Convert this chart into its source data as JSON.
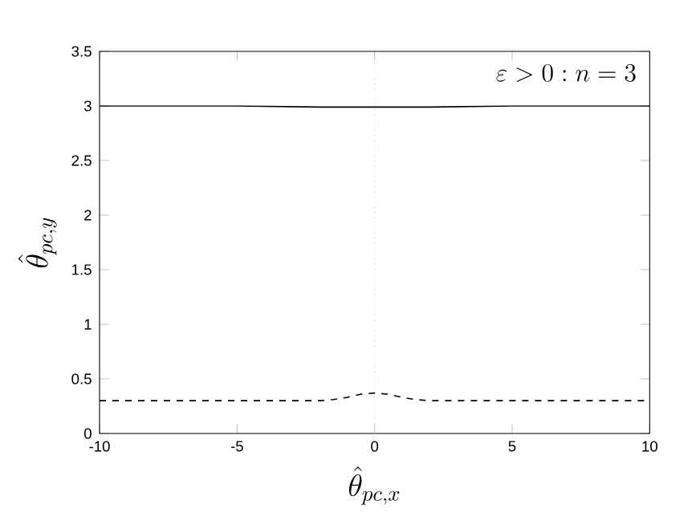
{
  "chart_data": {
    "type": "line",
    "xlabel": "\\hat{\\theta}_{pc,x}",
    "ylabel": "\\hat{\\theta}_{pc,y}",
    "annotations": [
      "\\varepsilon > 0 : n = 3"
    ],
    "series": [
      {
        "color": "#000000",
        "line_style": "solid",
        "x": [
          -10,
          -5,
          -2,
          -1,
          0,
          1,
          2,
          5,
          10
        ],
        "values": [
          3,
          3,
          2.99,
          2.99,
          2.99,
          2.99,
          2.99,
          3,
          3
        ]
      },
      {
        "color": "#000000",
        "line_style": "dashed",
        "x": [
          -10,
          -5,
          -2,
          -1.5,
          -1,
          -0.5,
          0,
          0.5,
          1,
          1.5,
          2,
          5,
          10
        ],
        "values": [
          0.3,
          0.3,
          0.3,
          0.31,
          0.33,
          0.36,
          0.37,
          0.36,
          0.33,
          0.31,
          0.3,
          0.3,
          0.3
        ]
      }
    ],
    "ref_lines": [
      {
        "axis": "x",
        "value": 0,
        "color": "#c8c8c8",
        "line_style": "dotted"
      }
    ],
    "xlim": [
      -10,
      10
    ],
    "ylim": [
      0,
      3.5
    ],
    "xticks": [
      -10,
      -5,
      0,
      5,
      10
    ],
    "yticks": [
      0,
      0.5,
      1,
      1.5,
      2,
      2.5,
      3,
      3.5
    ]
  }
}
